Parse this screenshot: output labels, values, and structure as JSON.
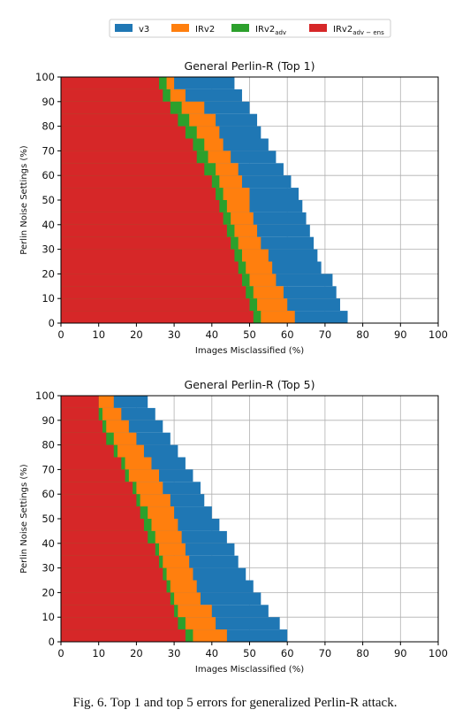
{
  "legend": [
    {
      "label": "v3",
      "color": "#1f77b4"
    },
    {
      "label": "IRv2",
      "color": "#ff7f0e"
    },
    {
      "label": "IRv2",
      "sub": "adv",
      "color": "#2ca02c"
    },
    {
      "label": "IRv2",
      "sub": "adv − ens",
      "color": "#d62728"
    }
  ],
  "caption": "Fig. 6.  Top 1 and top 5 errors for generalized Perlin-R attack.",
  "chart_data": [
    {
      "type": "bar",
      "orientation": "horizontal",
      "title": "General Perlin-R (Top 1)",
      "xlabel": "Images Misclassified (%)",
      "ylabel": "Perlin Noise Settings (%)",
      "xlim": [
        0,
        100
      ],
      "ylim": [
        0,
        100
      ],
      "xticks": [
        "0",
        "10",
        "20",
        "30",
        "40",
        "50",
        "60",
        "70",
        "80",
        "90",
        "100"
      ],
      "yticks": [
        "0",
        "10",
        "20",
        "30",
        "40",
        "50",
        "60",
        "70",
        "80",
        "90",
        "100"
      ],
      "grid": true,
      "y": [
        0,
        5,
        10,
        15,
        20,
        25,
        30,
        35,
        40,
        45,
        50,
        55,
        60,
        65,
        70,
        75,
        80,
        85,
        90,
        95
      ],
      "series": [
        {
          "name": "v3",
          "values": [
            76,
            74,
            73,
            72,
            69,
            68,
            67,
            66,
            65,
            64,
            63,
            61,
            59,
            57,
            55,
            53,
            52,
            50,
            48,
            46
          ]
        },
        {
          "name": "IRv2",
          "values": [
            62,
            60,
            59,
            57,
            56,
            55,
            53,
            52,
            51,
            50,
            50,
            48,
            47,
            45,
            43,
            42,
            41,
            38,
            33,
            30
          ]
        },
        {
          "name": "IRv2adv",
          "values": [
            53,
            52,
            51,
            50,
            49,
            48,
            47,
            46,
            45,
            44,
            43,
            42,
            41,
            39,
            38,
            36,
            34,
            32,
            29,
            28
          ]
        },
        {
          "name": "IRv2adv-ens",
          "values": [
            51,
            50,
            49,
            48,
            47,
            46,
            45,
            44,
            43,
            42,
            41,
            40,
            38,
            36,
            35,
            33,
            31,
            29,
            27,
            26
          ]
        }
      ]
    },
    {
      "type": "bar",
      "orientation": "horizontal",
      "title": "General Perlin-R (Top 5)",
      "xlabel": "Images Misclassified (%)",
      "ylabel": "Perlin Noise Settings (%)",
      "xlim": [
        0,
        100
      ],
      "ylim": [
        0,
        100
      ],
      "xticks": [
        "0",
        "10",
        "20",
        "30",
        "40",
        "50",
        "60",
        "70",
        "80",
        "90",
        "100"
      ],
      "yticks": [
        "0",
        "10",
        "20",
        "30",
        "40",
        "50",
        "60",
        "70",
        "80",
        "90",
        "100"
      ],
      "grid": true,
      "y": [
        0,
        5,
        10,
        15,
        20,
        25,
        30,
        35,
        40,
        45,
        50,
        55,
        60,
        65,
        70,
        75,
        80,
        85,
        90,
        95
      ],
      "series": [
        {
          "name": "v3",
          "values": [
            60,
            58,
            55,
            53,
            51,
            49,
            47,
            46,
            44,
            42,
            40,
            38,
            37,
            35,
            33,
            31,
            29,
            27,
            25,
            23
          ]
        },
        {
          "name": "IRv2",
          "values": [
            44,
            41,
            40,
            37,
            36,
            35,
            34,
            33,
            32,
            31,
            30,
            29,
            27,
            26,
            24,
            22,
            20,
            18,
            16,
            14
          ]
        },
        {
          "name": "IRv2adv",
          "values": [
            35,
            33,
            31,
            30,
            29,
            28,
            27,
            26,
            25,
            24,
            23,
            21,
            20,
            18,
            17,
            15,
            14,
            12,
            11,
            10
          ]
        },
        {
          "name": "IRv2adv-ens",
          "values": [
            33,
            31,
            30,
            29,
            28,
            27,
            26,
            25,
            23,
            22,
            21,
            20,
            19,
            17,
            16,
            14,
            12,
            11,
            10,
            10
          ]
        }
      ]
    }
  ]
}
